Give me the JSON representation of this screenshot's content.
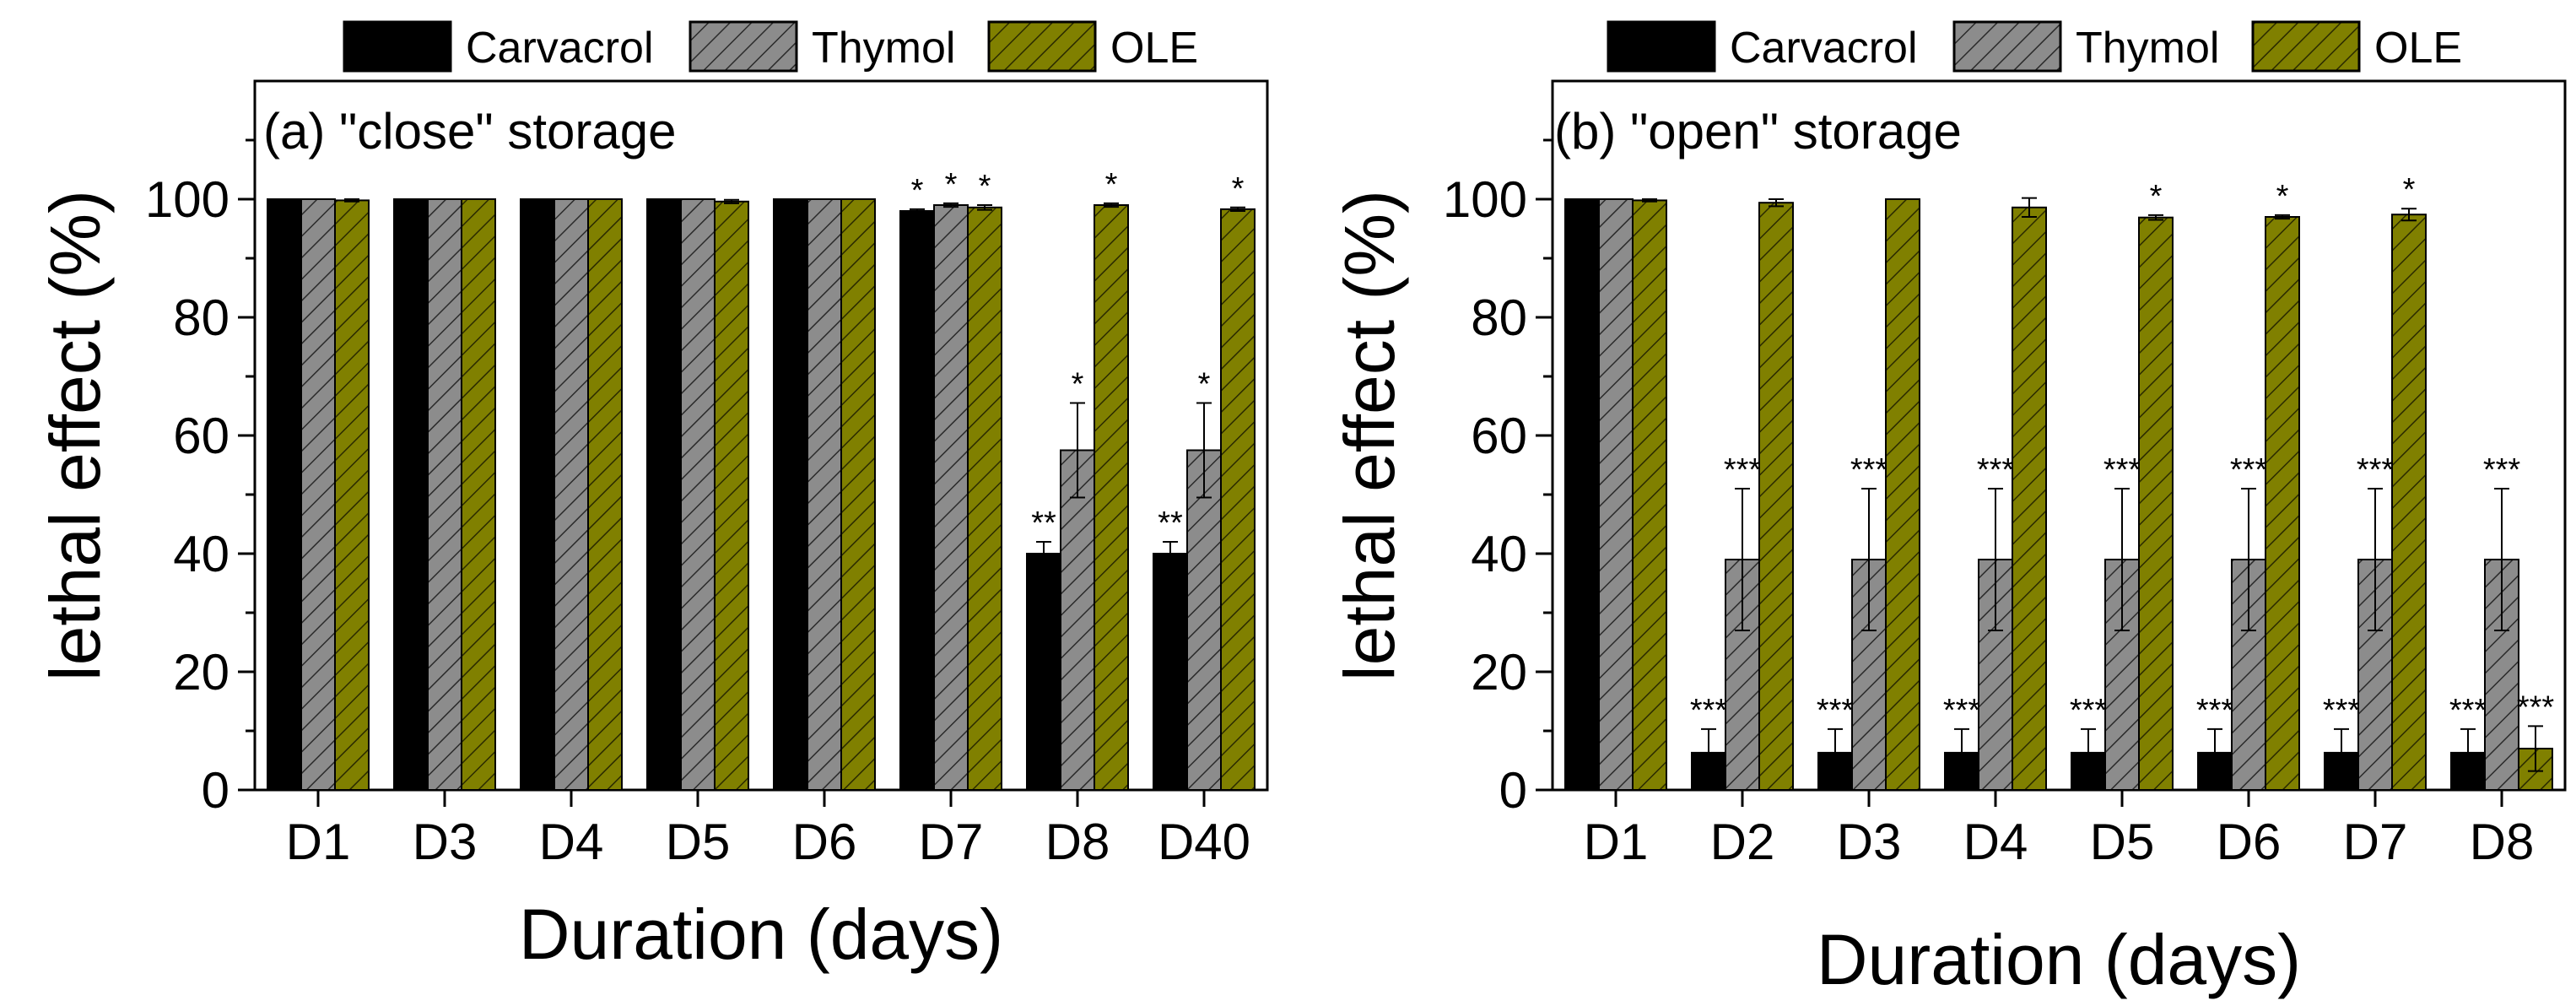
{
  "colors": {
    "Carvacrol": "#000000",
    "Thymol": "#8c8c8c",
    "OLE": "#808000"
  },
  "chart_data": [
    {
      "type": "bar",
      "title": "(a) \"close\" storage",
      "xlabel": "Duration (days)",
      "ylabel": "lethal effect (%)",
      "ylim": [
        0,
        100
      ],
      "ymax_display": 120,
      "yticks": [
        0,
        20,
        40,
        60,
        80,
        100
      ],
      "grid": false,
      "legend": "top",
      "categories": [
        "D1",
        "D3",
        "D4",
        "D5",
        "D6",
        "D7",
        "D8",
        "D40"
      ],
      "series": [
        {
          "name": "Carvacrol",
          "values": [
            100,
            100,
            100,
            100,
            100,
            98,
            40,
            40
          ],
          "errors": [
            0,
            0,
            0,
            0,
            0,
            0.3,
            2,
            2
          ],
          "sig": [
            "",
            "",
            "",
            "",
            "",
            "*",
            "**",
            "**"
          ]
        },
        {
          "name": "Thymol",
          "values": [
            100,
            100,
            100,
            100,
            100,
            99,
            57.5,
            57.5
          ],
          "errors": [
            0,
            0,
            0,
            0,
            0,
            0.3,
            8,
            8
          ],
          "sig": [
            "",
            "",
            "",
            "",
            "",
            "*",
            "*",
            "*"
          ]
        },
        {
          "name": "OLE",
          "values": [
            99.8,
            100,
            100,
            99.6,
            100,
            98.6,
            99,
            98.3
          ],
          "errors": [
            0.2,
            0,
            0,
            0.3,
            0,
            0.4,
            0.3,
            0.3
          ],
          "sig": [
            "",
            "",
            "",
            "",
            "",
            "*",
            "*",
            "*"
          ]
        }
      ]
    },
    {
      "type": "bar",
      "title": "(b) \"open\" storage",
      "xlabel": "Duration (days)",
      "ylabel": "lethal effect (%)",
      "ylim": [
        0,
        100
      ],
      "ymax_display": 120,
      "yticks": [
        0,
        20,
        40,
        60,
        80,
        100
      ],
      "grid": false,
      "legend": "top",
      "categories": [
        "D1",
        "D2",
        "D3",
        "D4",
        "D5",
        "D6",
        "D7",
        "D8"
      ],
      "series": [
        {
          "name": "Carvacrol",
          "values": [
            100,
            6.3,
            6.3,
            6.3,
            6.3,
            6.3,
            6.3,
            6.3
          ],
          "errors": [
            0,
            4,
            4,
            4,
            4,
            4,
            4,
            4
          ],
          "sig": [
            "",
            "***",
            "***",
            "***",
            "***",
            "***",
            "***",
            "***"
          ]
        },
        {
          "name": "Thymol",
          "values": [
            100,
            39,
            39,
            39,
            39,
            39,
            39,
            39
          ],
          "errors": [
            0,
            12,
            12,
            12,
            12,
            12,
            12,
            12
          ],
          "sig": [
            "",
            "***",
            "***",
            "***",
            "***",
            "***",
            "***",
            "***"
          ]
        },
        {
          "name": "OLE",
          "values": [
            99.8,
            99.4,
            100,
            98.6,
            96.9,
            97,
            97.4,
            7
          ],
          "errors": [
            0.2,
            0.6,
            0,
            1.6,
            0.4,
            0.3,
            1,
            3.8
          ],
          "sig": [
            "",
            "",
            "",
            "",
            "*",
            "*",
            "*",
            "***"
          ]
        }
      ]
    }
  ]
}
